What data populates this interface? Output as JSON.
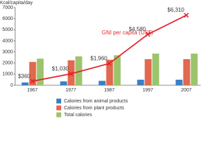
{
  "chart_data": {
    "type": "bar",
    "y_label": "Kcal/capita/day",
    "categories": [
      "1967",
      "1977",
      "1987",
      "1997",
      "2007"
    ],
    "series": [
      {
        "name": "Calories from animal products",
        "color": "#3b7fc4",
        "values": [
          250,
          350,
          400,
          500,
          500
        ]
      },
      {
        "name": "Calories from plant products",
        "color": "#e0694f",
        "values": [
          2100,
          2250,
          2300,
          2350,
          2350
        ]
      },
      {
        "name": "Total calories",
        "color": "#9cc46c",
        "values": [
          2400,
          2600,
          2700,
          2850,
          2850
        ]
      }
    ],
    "overlay": {
      "type": "line",
      "name": "GNI per capita (US$)",
      "color": "#e3262d",
      "values": [
        360,
        1030,
        1960,
        4580,
        6310
      ],
      "value_labels": [
        "$360",
        "$1,030",
        "$1,960",
        "$4,580",
        "$6,310"
      ]
    },
    "ylim": [
      0,
      7000
    ],
    "yticks": [
      0,
      1000,
      2000,
      3000,
      4000,
      5000,
      6000,
      7000
    ],
    "grid": false
  }
}
